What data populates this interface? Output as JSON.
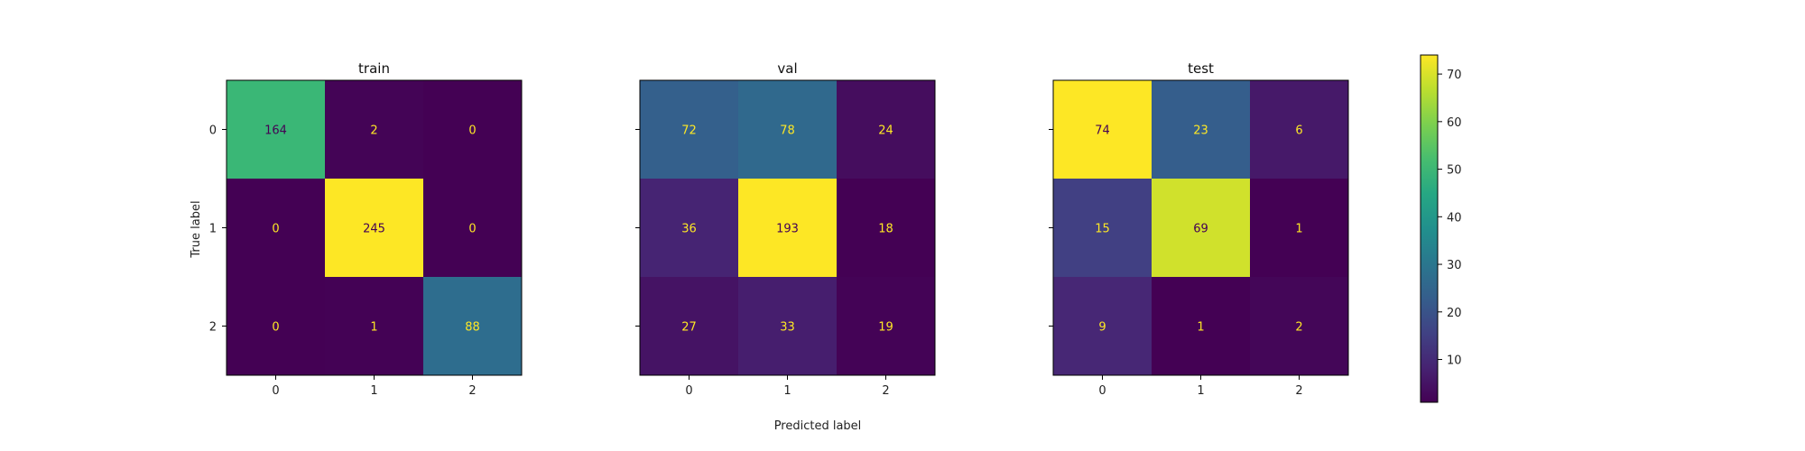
{
  "chart_data": {
    "type": "heatmap",
    "xlabel": "Predicted label",
    "ylabel": "True label",
    "x_ticks": [
      "0",
      "1",
      "2"
    ],
    "y_ticks": [
      "0",
      "1",
      "2"
    ],
    "colormap": "viridis",
    "colorbar": {
      "ticks": [
        "10",
        "20",
        "30",
        "40",
        "50",
        "60",
        "70"
      ],
      "range": [
        1,
        74
      ]
    },
    "panels": [
      {
        "title": "train",
        "matrix": [
          [
            164,
            2,
            0
          ],
          [
            0,
            245,
            0
          ],
          [
            0,
            1,
            88
          ]
        ]
      },
      {
        "title": "val",
        "matrix": [
          [
            72,
            78,
            24
          ],
          [
            36,
            193,
            18
          ],
          [
            27,
            33,
            19
          ]
        ]
      },
      {
        "title": "test",
        "matrix": [
          [
            74,
            23,
            6
          ],
          [
            15,
            69,
            1
          ],
          [
            9,
            1,
            2
          ]
        ]
      }
    ]
  }
}
